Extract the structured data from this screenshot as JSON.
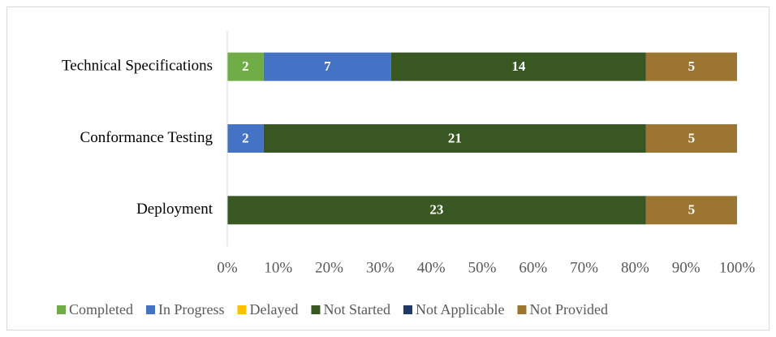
{
  "chart_data": {
    "type": "bar",
    "orientation": "horizontal",
    "stack": "percent",
    "categories": [
      "Technical Specifications",
      "Conformance Testing",
      "Deployment"
    ],
    "series": [
      {
        "name": "Completed",
        "color": "#70ad47",
        "values": [
          2,
          0,
          0
        ]
      },
      {
        "name": "In Progress",
        "color": "#4472c4",
        "values": [
          7,
          2,
          0
        ]
      },
      {
        "name": "Delayed",
        "color": "#ffc000",
        "values": [
          0,
          0,
          0
        ]
      },
      {
        "name": "Not Started",
        "color": "#385723",
        "values": [
          14,
          21,
          23
        ]
      },
      {
        "name": "Not Applicable",
        "color": "#203864",
        "values": [
          0,
          0,
          0
        ]
      },
      {
        "name": "Not Provided",
        "color": "#9c7530",
        "values": [
          5,
          5,
          5
        ]
      }
    ],
    "xlim": [
      0,
      100
    ],
    "xticks": [
      {
        "value": 0,
        "label": "0%"
      },
      {
        "value": 10,
        "label": "10%"
      },
      {
        "value": 20,
        "label": "20%"
      },
      {
        "value": 30,
        "label": "30%"
      },
      {
        "value": 40,
        "label": "40%"
      },
      {
        "value": 50,
        "label": "50%"
      },
      {
        "value": 60,
        "label": "60%"
      },
      {
        "value": 70,
        "label": "70%"
      },
      {
        "value": 80,
        "label": "80%"
      },
      {
        "value": 90,
        "label": "90%"
      },
      {
        "value": 100,
        "label": "100%"
      }
    ],
    "grid": false,
    "legend": "bottom"
  }
}
